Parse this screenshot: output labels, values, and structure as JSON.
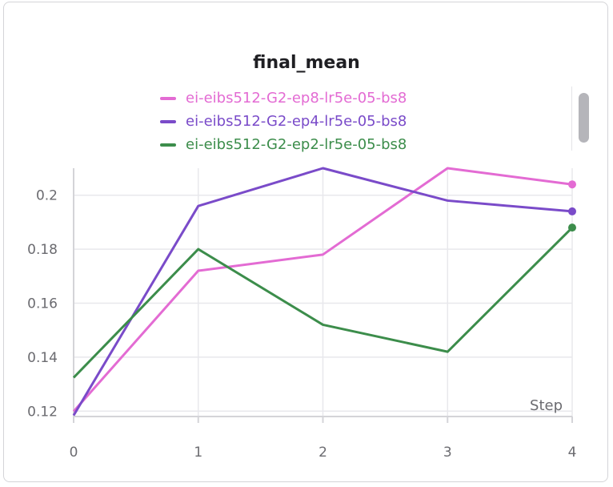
{
  "chart_data": {
    "type": "line",
    "title": "final_mean",
    "xlabel": "Step",
    "ylabel": "",
    "x": [
      0,
      1,
      2,
      3,
      4
    ],
    "xlim": [
      0,
      4
    ],
    "ylim": [
      0.118,
      0.21
    ],
    "xticks": [
      "0",
      "1",
      "2",
      "3",
      "4"
    ],
    "yticks": [
      "0.12",
      "0.14",
      "0.16",
      "0.18",
      "0.2"
    ],
    "grid": true,
    "legend_position": "top",
    "series": [
      {
        "name": "ei-eibs512-G2-ep8-lr5e-05-bs8",
        "color": "#e36bd3",
        "values": [
          0.1199,
          0.172,
          0.178,
          0.21,
          0.204
        ]
      },
      {
        "name": "ei-eibs512-G2-ep4-lr5e-05-bs8",
        "color": "#7a4bc9",
        "values": [
          0.1184,
          0.196,
          0.21,
          0.198,
          0.194
        ]
      },
      {
        "name": "ei-eibs512-G2-ep2-lr5e-05-bs8",
        "color": "#3c8d4b",
        "values": [
          0.1324,
          0.18,
          0.152,
          0.142,
          0.188
        ]
      }
    ]
  }
}
